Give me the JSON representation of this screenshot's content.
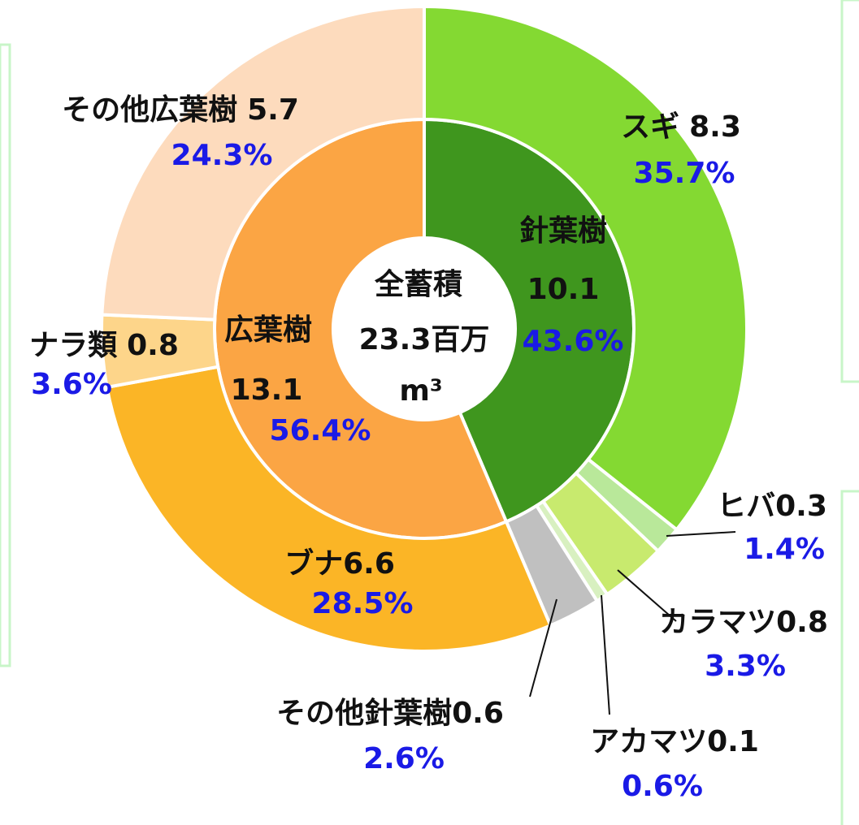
{
  "chart_data": {
    "type": "donut",
    "center": {
      "title": "全蓄積",
      "total": "23.3百万",
      "unit": "m³"
    },
    "inner": {
      "categories": [
        "針葉樹",
        "広葉樹"
      ],
      "values": [
        10.1,
        13.1
      ],
      "shares": [
        43.6,
        56.4
      ],
      "share_labels": [
        "43.6%",
        "56.4%"
      ],
      "colors": [
        "#3f961e",
        "#fba544"
      ]
    },
    "outer": {
      "categories": [
        "スギ",
        "ヒバ",
        "カラマツ",
        "アカマツ",
        "その他針葉樹",
        "ブナ",
        "ナラ類",
        "その他広葉樹"
      ],
      "values": [
        8.3,
        0.3,
        0.8,
        0.1,
        0.6,
        6.6,
        0.8,
        5.7
      ],
      "shares": [
        35.7,
        1.4,
        3.3,
        0.6,
        2.6,
        28.5,
        3.6,
        24.3
      ],
      "share_labels": [
        "35.7%",
        "1.4%",
        "3.3%",
        "0.6%",
        "2.6%",
        "28.5%",
        "3.6%",
        "24.3%"
      ],
      "colors": [
        "#84d932",
        "#b9e89a",
        "#c8ea6e",
        "#d8f0c0",
        "#c0c0c0",
        "#fbb526",
        "#fdd58a",
        "#fddbbd"
      ]
    }
  }
}
